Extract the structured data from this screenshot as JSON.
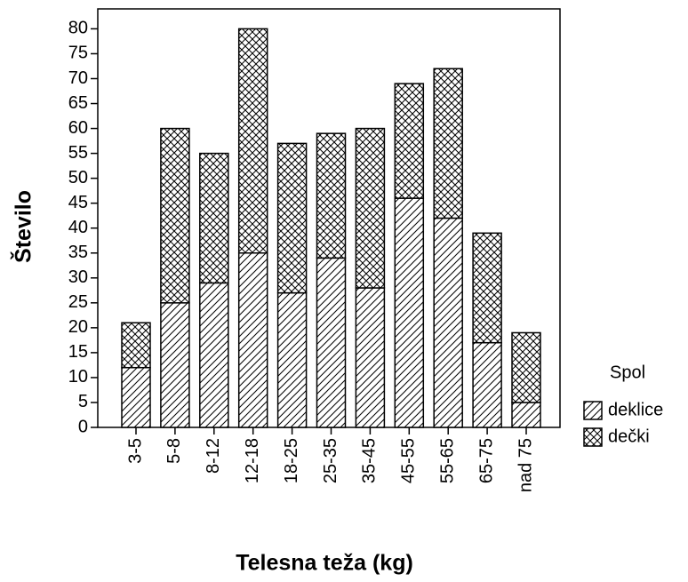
{
  "chart_data": {
    "type": "stacked_bar",
    "xlabel": "Telesna teža (kg)",
    "ylabel": "Število",
    "categories": [
      "3-5",
      "5-8",
      "8-12",
      "12-18",
      "18-25",
      "25-35",
      "35-45",
      "45-55",
      "55-65",
      "65-75",
      "nad 75"
    ],
    "series": [
      {
        "name": "deklice",
        "color": "#000000",
        "pattern": "hatch",
        "values": [
          12,
          25,
          29,
          35,
          27,
          34,
          28,
          46,
          42,
          17,
          5
        ]
      },
      {
        "name": "dečki",
        "color": "#000000",
        "pattern": "cross",
        "values": [
          9,
          35,
          26,
          45,
          30,
          25,
          32,
          23,
          30,
          22,
          14
        ]
      }
    ],
    "legend_title": "Spol",
    "legend": "right",
    "ylim": [
      0,
      84
    ],
    "yticks": [
      0,
      5,
      10,
      15,
      20,
      25,
      30,
      35,
      40,
      45,
      50,
      55,
      60,
      65,
      70,
      75,
      80
    ]
  }
}
